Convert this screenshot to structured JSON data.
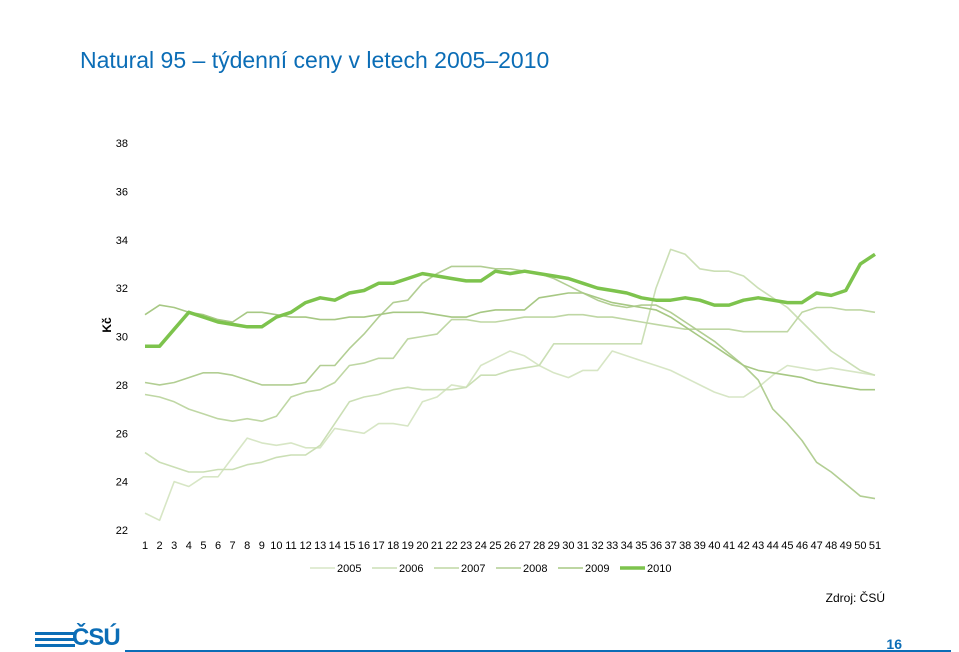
{
  "title": "Natural 95 – týdenní ceny v letech 2005–2010",
  "source": "Zdroj: ČSÚ",
  "logo_text": "ČSÚ",
  "page_number": "16",
  "colors": {
    "title": "#0b6db6",
    "series_2005": "#d7e6c5",
    "series_2006": "#cbdfb5",
    "series_2007": "#bfd7a4",
    "series_2008": "#b2ce93",
    "series_2009": "#a7c884",
    "series_2010": "#7dc34d"
  },
  "chart_data": {
    "type": "line",
    "title": "",
    "xlabel": "",
    "ylabel": "Kč",
    "ylim": [
      22,
      38
    ],
    "yticks": [
      22,
      24,
      26,
      28,
      30,
      32,
      34,
      36,
      38
    ],
    "grid": false,
    "legend_position": "bottom",
    "x": [
      1,
      2,
      3,
      4,
      5,
      6,
      7,
      8,
      9,
      10,
      11,
      12,
      13,
      14,
      15,
      16,
      17,
      18,
      19,
      20,
      21,
      22,
      23,
      24,
      25,
      26,
      27,
      28,
      29,
      30,
      31,
      32,
      33,
      34,
      35,
      36,
      37,
      38,
      39,
      40,
      41,
      42,
      43,
      44,
      45,
      46,
      47,
      48,
      49,
      50,
      51
    ],
    "series": [
      {
        "name": "2005",
        "values": [
          22.7,
          22.4,
          24.0,
          23.8,
          24.2,
          24.2,
          25.0,
          25.8,
          25.6,
          25.5,
          25.6,
          25.4,
          25.4,
          26.2,
          26.1,
          26.0,
          26.4,
          26.4,
          26.3,
          27.3,
          27.5,
          28.0,
          27.9,
          28.8,
          29.1,
          29.4,
          29.2,
          28.8,
          28.5,
          28.3,
          28.6,
          28.6,
          29.4,
          29.2,
          29.0,
          28.8,
          28.6,
          28.3,
          28.0,
          27.7,
          27.5,
          27.5,
          27.9,
          28.4,
          28.8,
          28.7,
          28.6,
          28.7,
          28.6,
          28.5,
          28.4
        ]
      },
      {
        "name": "2006",
        "values": [
          25.2,
          24.8,
          24.6,
          24.4,
          24.4,
          24.5,
          24.5,
          24.7,
          24.8,
          25.0,
          25.1,
          25.1,
          25.5,
          26.4,
          27.3,
          27.5,
          27.6,
          27.8,
          27.9,
          27.8,
          27.8,
          27.8,
          27.9,
          28.4,
          28.4,
          28.6,
          28.7,
          28.8,
          29.7,
          29.7,
          29.7,
          29.7,
          29.7,
          29.7,
          29.7,
          32.0,
          33.6,
          33.4,
          32.8,
          32.7,
          32.7,
          32.5,
          32.0,
          31.6,
          31.2,
          30.6,
          30.0,
          29.4,
          29.0,
          28.6,
          28.4
        ]
      },
      {
        "name": "2007",
        "values": [
          27.6,
          27.5,
          27.3,
          27.0,
          26.8,
          26.6,
          26.5,
          26.6,
          26.5,
          26.7,
          27.5,
          27.7,
          27.8,
          28.1,
          28.8,
          28.9,
          29.1,
          29.1,
          29.9,
          30.0,
          30.1,
          30.7,
          30.7,
          30.6,
          30.6,
          30.7,
          30.8,
          30.8,
          30.8,
          30.9,
          30.9,
          30.8,
          30.8,
          30.7,
          30.6,
          30.5,
          30.4,
          30.3,
          30.3,
          30.3,
          30.3,
          30.2,
          30.2,
          30.2,
          30.2,
          31.0,
          31.2,
          31.2,
          31.1,
          31.1,
          31.0
        ]
      },
      {
        "name": "2008",
        "values": [
          28.1,
          28.0,
          28.1,
          28.3,
          28.5,
          28.5,
          28.4,
          28.2,
          28.0,
          28.0,
          28.0,
          28.1,
          28.8,
          28.8,
          29.5,
          30.1,
          30.8,
          31.4,
          31.5,
          32.2,
          32.6,
          32.9,
          32.9,
          32.9,
          32.8,
          32.8,
          32.7,
          32.6,
          32.4,
          32.1,
          31.8,
          31.5,
          31.3,
          31.2,
          31.3,
          31.3,
          31.0,
          30.6,
          30.2,
          29.8,
          29.3,
          28.8,
          28.2,
          27.0,
          26.4,
          25.7,
          24.8,
          24.4,
          23.9,
          23.4,
          23.3
        ]
      },
      {
        "name": "2009",
        "values": [
          30.9,
          31.3,
          31.2,
          31.0,
          30.9,
          30.7,
          30.6,
          31.0,
          31.0,
          30.9,
          30.8,
          30.8,
          30.7,
          30.7,
          30.8,
          30.8,
          30.9,
          31.0,
          31.0,
          31.0,
          30.9,
          30.8,
          30.8,
          31.0,
          31.1,
          31.1,
          31.1,
          31.6,
          31.7,
          31.8,
          31.8,
          31.6,
          31.4,
          31.3,
          31.2,
          31.1,
          30.8,
          30.4,
          30.0,
          29.6,
          29.2,
          28.8,
          28.6,
          28.5,
          28.4,
          28.3,
          28.1,
          28.0,
          27.9,
          27.8,
          27.8
        ]
      },
      {
        "name": "2010",
        "values": [
          29.6,
          29.6,
          30.3,
          31.0,
          30.8,
          30.6,
          30.5,
          30.4,
          30.4,
          30.8,
          31.0,
          31.4,
          31.6,
          31.5,
          31.8,
          31.9,
          32.2,
          32.2,
          32.4,
          32.6,
          32.5,
          32.4,
          32.3,
          32.3,
          32.7,
          32.6,
          32.7,
          32.6,
          32.5,
          32.4,
          32.2,
          32.0,
          31.9,
          31.8,
          31.6,
          31.5,
          31.5,
          31.6,
          31.5,
          31.3,
          31.3,
          31.5,
          31.6,
          31.5,
          31.4,
          31.4,
          31.8,
          31.7,
          31.9,
          33.0,
          33.4
        ]
      }
    ]
  }
}
